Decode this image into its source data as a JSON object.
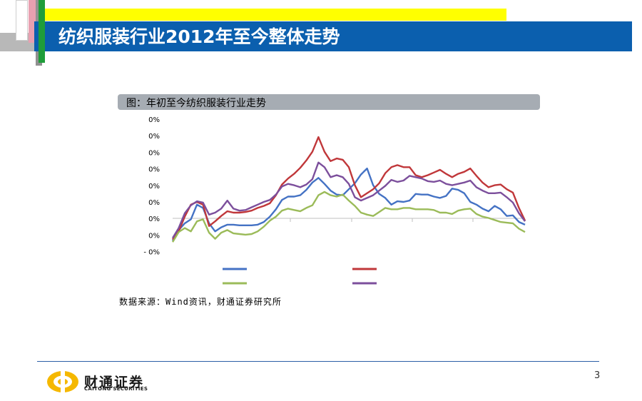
{
  "slide": {
    "title": "纺织服装行业2012年至今整体走势",
    "page_number": "3"
  },
  "chart_header": "图：年初至今纺织服装行业走势",
  "source": "数据来源：Wind资讯，财通证券研究所",
  "logo": {
    "name_cn": "财通证券",
    "name_en": "CAITONG SECURITIES",
    "icon": "caitong-logo-icon"
  },
  "colors": {
    "band": "#0b5fae",
    "accent": "#ffff00",
    "header": "#a6acb3",
    "series": [
      "#4472c4",
      "#c0373a",
      "#9bbb59",
      "#7c4f9c"
    ]
  },
  "chart_data": {
    "type": "line",
    "ytick_labels": [
      "0%",
      "0%",
      "0%",
      "0%",
      "0%",
      "0%",
      "0%",
      "0%",
      "- 0%"
    ],
    "series": [
      {
        "color": "#4472c4",
        "values": [
          0.6,
          2.2,
          3.2,
          3.8,
          6.0,
          5.5,
          3.2,
          2.0,
          2.6,
          3.0,
          3.0,
          2.9,
          2.9,
          2.9,
          3.0,
          3.4,
          4.2,
          5.3,
          6.7,
          7.2,
          7.2,
          7.4,
          8.2,
          9.3,
          10.0,
          9.1,
          8.1,
          7.5,
          7.4,
          8.3,
          9.2,
          10.5,
          11.4,
          8.9,
          7.6,
          7.0,
          6.0,
          6.5,
          6.4,
          6.6,
          7.6,
          7.5,
          7.5,
          7.2,
          7.0,
          7.3,
          8.4,
          8.2,
          7.7,
          6.4,
          6.0,
          5.4,
          5.0,
          5.8,
          5.3,
          4.3,
          4.4,
          3.4,
          3.0
        ]
      },
      {
        "color": "#c0373a",
        "values": [
          0.8,
          2.0,
          4.2,
          6.0,
          6.4,
          6.0,
          2.8,
          3.5,
          4.3,
          5.0,
          4.8,
          4.8,
          4.9,
          5.1,
          5.5,
          5.8,
          6.2,
          7.4,
          9.0,
          9.9,
          10.6,
          11.5,
          12.6,
          13.9,
          16.1,
          13.9,
          12.5,
          12.9,
          12.7,
          11.6,
          8.9,
          7.1,
          7.7,
          8.3,
          9.2,
          10.7,
          11.6,
          11.9,
          11.6,
          11.6,
          10.4,
          10.1,
          10.4,
          10.8,
          11.2,
          10.6,
          10.1,
          10.6,
          10.9,
          11.4,
          10.3,
          9.3,
          8.6,
          8.9,
          9.0,
          8.3,
          7.8,
          5.5,
          3.6
        ]
      },
      {
        "color": "#9bbb59",
        "values": [
          0.4,
          1.9,
          2.5,
          2.0,
          3.5,
          3.8,
          1.8,
          0.9,
          1.8,
          2.2,
          1.7,
          1.6,
          1.5,
          1.6,
          2.0,
          2.7,
          3.6,
          4.2,
          5.1,
          5.4,
          5.2,
          5.0,
          5.5,
          5.9,
          7.4,
          7.9,
          7.4,
          7.2,
          7.5,
          6.6,
          5.8,
          4.8,
          4.5,
          4.3,
          4.9,
          5.5,
          5.3,
          5.3,
          5.5,
          5.5,
          5.3,
          5.3,
          5.3,
          5.2,
          4.8,
          4.8,
          4.6,
          5.1,
          5.3,
          5.4,
          4.6,
          4.2,
          4.0,
          3.7,
          3.4,
          3.3,
          3.2,
          2.4,
          1.9
        ]
      },
      {
        "color": "#7c4f9c",
        "values": [
          1.0,
          2.5,
          4.7,
          5.9,
          6.5,
          6.3,
          4.5,
          4.8,
          5.4,
          6.6,
          5.4,
          5.1,
          5.2,
          5.6,
          6.0,
          6.4,
          6.7,
          7.5,
          8.7,
          9.1,
          8.9,
          8.6,
          9.0,
          9.8,
          12.3,
          11.6,
          10.1,
          10.4,
          10.1,
          9.1,
          7.1,
          6.6,
          7.0,
          7.4,
          8.1,
          8.8,
          9.7,
          9.4,
          9.6,
          10.3,
          10.1,
          9.9,
          9.5,
          9.4,
          9.6,
          9.1,
          8.9,
          9.1,
          9.3,
          9.6,
          8.6,
          8.1,
          7.7,
          7.7,
          7.8,
          7.1,
          6.3,
          4.7,
          3.5
        ]
      }
    ]
  }
}
